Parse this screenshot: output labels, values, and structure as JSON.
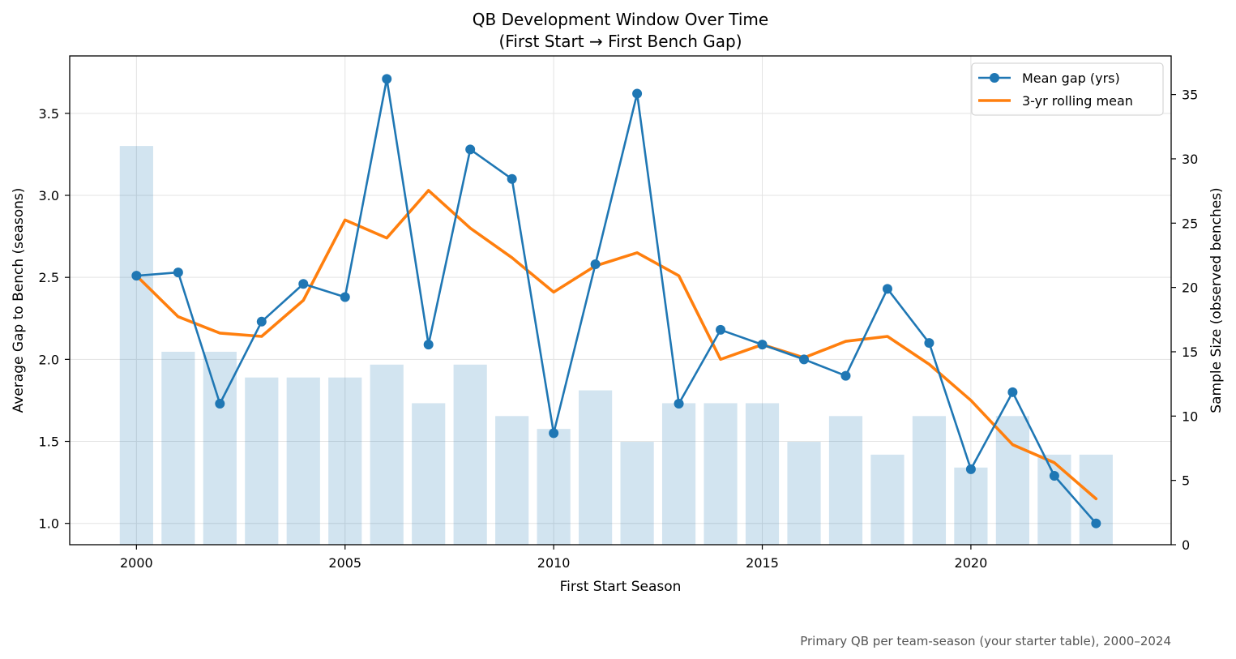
{
  "chart_data": {
    "type": "line",
    "title": "QB Development Window Over Time",
    "subtitle": "(First Start → First Bench Gap)",
    "xlabel": "First Start Season",
    "ylabel_left": "Average Gap to Bench (seasons)",
    "ylabel_right": "Sample Size (observed benches)",
    "caption": "Primary QB per team-season (your starter table), 2000–2024",
    "x": [
      2000,
      2001,
      2002,
      2003,
      2004,
      2005,
      2006,
      2007,
      2008,
      2009,
      2010,
      2011,
      2012,
      2013,
      2014,
      2015,
      2016,
      2017,
      2018,
      2019,
      2020,
      2021,
      2022,
      2023
    ],
    "xlim": [
      1998.4,
      2024.8
    ],
    "ylim_left": [
      0.87,
      3.85
    ],
    "ylim_right": [
      0,
      38
    ],
    "x_ticks": [
      2000,
      2005,
      2010,
      2015,
      2020
    ],
    "y_left_ticks": [
      "1.0",
      "1.5",
      "2.0",
      "2.5",
      "3.0",
      "3.5"
    ],
    "y_right_ticks": [
      "0",
      "5",
      "10",
      "15",
      "20",
      "25",
      "30",
      "35"
    ],
    "grid": true,
    "legend_position": "top-right",
    "series": [
      {
        "name": "Mean gap (yrs)",
        "type": "line-marker",
        "axis": "left",
        "color": "#1f77b4",
        "values": [
          2.51,
          2.53,
          1.73,
          2.23,
          2.46,
          2.38,
          3.71,
          2.09,
          3.28,
          3.1,
          1.55,
          2.58,
          3.62,
          1.73,
          2.18,
          2.09,
          2.0,
          1.9,
          2.43,
          2.1,
          1.33,
          1.8,
          1.29,
          1.0
        ]
      },
      {
        "name": "3-yr rolling mean",
        "type": "line",
        "axis": "left",
        "color": "#ff7f0e",
        "values": [
          2.51,
          2.26,
          2.16,
          2.14,
          2.36,
          2.85,
          2.74,
          3.03,
          2.8,
          2.62,
          2.41,
          2.57,
          2.65,
          2.51,
          2.0,
          2.09,
          2.01,
          2.11,
          2.14,
          1.97,
          1.75,
          1.48,
          1.37,
          1.15
        ]
      },
      {
        "name": "Sample size",
        "type": "bar",
        "axis": "right",
        "color": "#1f77b4",
        "values": [
          31,
          15,
          15,
          13,
          13,
          13,
          14,
          11,
          14,
          10,
          9,
          12,
          8,
          11,
          11,
          11,
          8,
          10,
          7,
          10,
          6,
          10,
          7,
          7
        ]
      }
    ]
  }
}
